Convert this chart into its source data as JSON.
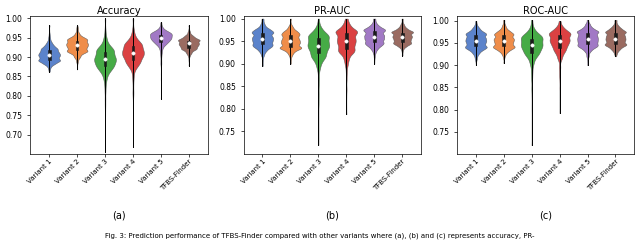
{
  "titles": [
    "Accuracy",
    "PR-AUC",
    "ROC-AUC"
  ],
  "subplot_labels": [
    "(a)",
    "(b)",
    "(c)"
  ],
  "categories": [
    "Variant 1",
    "Variant 2",
    "Variant 3",
    "Variant 4",
    "Variant 5",
    "TFBS-Finder"
  ],
  "colors": [
    "#4472C4",
    "#ED7D31",
    "#2CA02C",
    "#D62728",
    "#9467BD",
    "#8C564B"
  ],
  "accuracy": {
    "medians": [
      0.905,
      0.93,
      0.895,
      0.91,
      0.95,
      0.935
    ],
    "q1": [
      0.893,
      0.918,
      0.878,
      0.893,
      0.938,
      0.923
    ],
    "q3": [
      0.918,
      0.942,
      0.912,
      0.928,
      0.958,
      0.942
    ],
    "whislo": [
      0.862,
      0.868,
      0.655,
      0.668,
      0.793,
      0.878
    ],
    "whishi": [
      0.982,
      0.982,
      1.0,
      1.0,
      0.99,
      0.982
    ],
    "peak_lo": [
      0.865,
      0.87,
      0.862,
      0.862,
      0.862,
      0.87
    ],
    "peak_hi": [
      0.99,
      0.99,
      1.0,
      1.0,
      0.99,
      0.99
    ],
    "ylim": [
      0.65,
      1.005
    ],
    "yticks": [
      0.7,
      0.75,
      0.8,
      0.85,
      0.9,
      0.95,
      1.0
    ]
  },
  "pr_auc": {
    "medians": [
      0.955,
      0.95,
      0.94,
      0.95,
      0.96,
      0.96
    ],
    "q1": [
      0.943,
      0.938,
      0.923,
      0.933,
      0.948,
      0.948
    ],
    "q3": [
      0.968,
      0.963,
      0.958,
      0.968,
      0.973,
      0.968
    ],
    "whislo": [
      0.895,
      0.9,
      0.72,
      0.788,
      0.9,
      0.918
    ],
    "whishi": [
      1.0,
      1.0,
      1.0,
      1.0,
      1.0,
      1.0
    ],
    "peak_lo": [
      0.9,
      0.905,
      0.9,
      0.9,
      0.905,
      0.905
    ],
    "peak_hi": [
      1.0,
      1.0,
      1.0,
      1.0,
      1.0,
      1.0
    ],
    "ylim": [
      0.7,
      1.005
    ],
    "yticks": [
      0.75,
      0.8,
      0.85,
      0.9,
      0.95,
      1.0
    ]
  },
  "roc_auc": {
    "medians": [
      0.955,
      0.955,
      0.945,
      0.955,
      0.96,
      0.96
    ],
    "q1": [
      0.943,
      0.943,
      0.928,
      0.938,
      0.948,
      0.948
    ],
    "q3": [
      0.968,
      0.968,
      0.958,
      0.968,
      0.973,
      0.973
    ],
    "whislo": [
      0.9,
      0.905,
      0.72,
      0.792,
      0.9,
      0.92
    ],
    "whishi": [
      1.0,
      1.002,
      1.002,
      1.0,
      1.002,
      1.002
    ],
    "peak_lo": [
      0.905,
      0.905,
      0.905,
      0.905,
      0.905,
      0.905
    ],
    "peak_hi": [
      1.0,
      1.0,
      1.0,
      1.0,
      1.0,
      1.0
    ],
    "ylim": [
      0.7,
      1.01
    ],
    "yticks": [
      0.75,
      0.8,
      0.85,
      0.9,
      0.95,
      1.0
    ]
  },
  "caption": "Fig. 3: Prediction performance of TFBS-Finder compared with other variants where (a), (b) and (c) represents accuracy, PR-",
  "figsize": [
    6.4,
    2.41
  ],
  "dpi": 100
}
